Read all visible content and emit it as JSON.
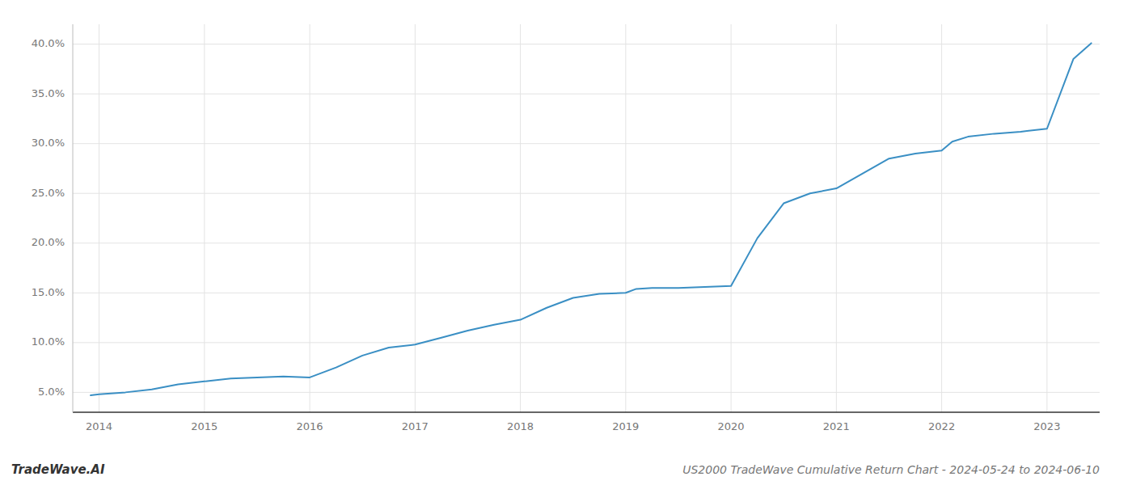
{
  "chart_data": {
    "type": "line",
    "title": "US2000 TradeWave Cumulative Return Chart - 2024-05-24 to 2024-06-10",
    "annotations": [
      "TradeWave.AI"
    ],
    "color": "#3a8fc4",
    "x": [
      2013.92,
      2014.0,
      2014.25,
      2014.5,
      2014.75,
      2015.0,
      2015.25,
      2015.5,
      2015.75,
      2016.0,
      2016.25,
      2016.5,
      2016.75,
      2017.0,
      2017.25,
      2017.5,
      2017.75,
      2018.0,
      2018.25,
      2018.5,
      2018.75,
      2019.0,
      2019.1,
      2019.25,
      2019.5,
      2019.75,
      2020.0,
      2020.25,
      2020.5,
      2020.75,
      2021.0,
      2021.25,
      2021.5,
      2021.75,
      2022.0,
      2022.1,
      2022.25,
      2022.5,
      2022.75,
      2023.0,
      2023.25,
      2023.42
    ],
    "values": [
      4.7,
      4.8,
      5.0,
      5.3,
      5.8,
      6.1,
      6.4,
      6.5,
      6.6,
      6.5,
      7.5,
      8.7,
      9.5,
      9.8,
      10.5,
      11.2,
      11.8,
      12.3,
      13.5,
      14.5,
      14.9,
      15.0,
      15.4,
      15.5,
      15.5,
      15.6,
      15.7,
      20.5,
      24.0,
      25.0,
      25.5,
      27.0,
      28.5,
      29.0,
      29.3,
      30.2,
      30.7,
      31.0,
      31.2,
      31.5,
      38.5,
      40.1
    ],
    "xlim": [
      2013.75,
      2023.5
    ],
    "ylim": [
      3.0,
      42.0
    ],
    "xticks": [
      2014,
      2015,
      2016,
      2017,
      2018,
      2019,
      2020,
      2021,
      2022,
      2023
    ],
    "yticks": [
      {
        "value": 5.0,
        "label": "5.0%"
      },
      {
        "value": 10.0,
        "label": "10.0%"
      },
      {
        "value": 15.0,
        "label": "15.0%"
      },
      {
        "value": 20.0,
        "label": "20.0%"
      },
      {
        "value": 25.0,
        "label": "25.0%"
      },
      {
        "value": 30.0,
        "label": "30.0%"
      },
      {
        "value": 35.0,
        "label": "35.0%"
      },
      {
        "value": 40.0,
        "label": "40.0%"
      }
    ],
    "grid": true
  }
}
